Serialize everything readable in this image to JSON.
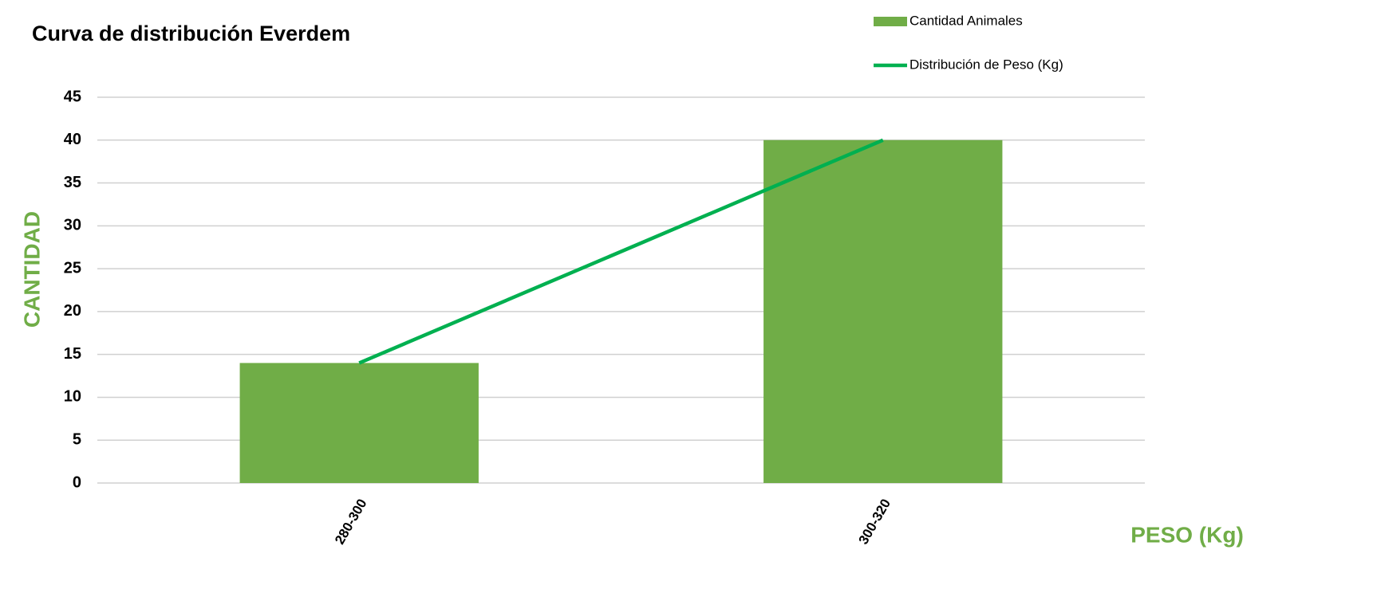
{
  "chart_data": {
    "type": "bar",
    "title": "Curva de distribución Everdem",
    "x_label": "PESO (Kg)",
    "y_label": "CANTIDAD",
    "axis_label_color": "#70ad47",
    "categories": [
      "280-300",
      "300-320"
    ],
    "series": [
      {
        "name": "Cantidad Animales",
        "type": "bar",
        "color": "#70ad47",
        "values": [
          14,
          40
        ]
      },
      {
        "name": "Distribución de Peso (Kg)",
        "type": "line",
        "color": "#00b050",
        "values": [
          14,
          40
        ]
      }
    ],
    "ylim": [
      0,
      45
    ],
    "yticks": [
      0,
      5,
      10,
      15,
      20,
      25,
      30,
      35,
      40,
      45
    ],
    "grid": true,
    "legend": "top-right"
  }
}
